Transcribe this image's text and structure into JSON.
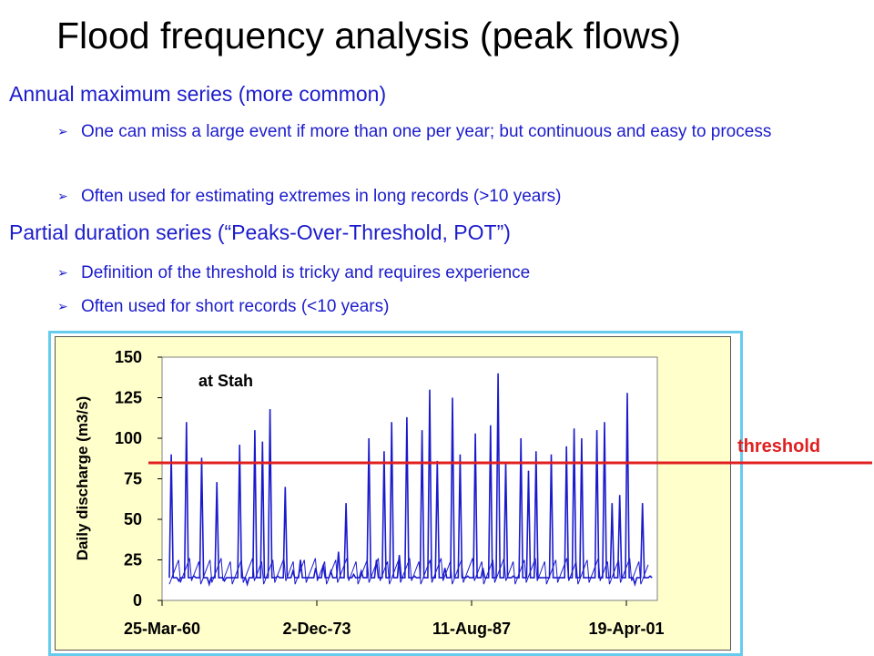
{
  "title": "Flood frequency analysis (peak flows)",
  "section1": {
    "heading": "Annual maximum series (more common)",
    "bullets": [
      "One can miss a large event if more than one per year; but continuous and easy to process",
      "Often used for estimating extremes in long records (>10 years)"
    ]
  },
  "section2": {
    "heading": "Partial duration series (“Peaks-Over-Threshold, POT”)",
    "bullets": [
      "Definition of the threshold is tricky and requires experience",
      "Often used for short records (<10 years)"
    ]
  },
  "threshold_label": "threshold",
  "colors": {
    "text_blue": "#1c1ccc",
    "series": "#1a1acc",
    "threshold": "#e02020",
    "frame": "#66ccee",
    "plot_bg": "#ffffcc"
  },
  "chart_data": {
    "type": "line",
    "annotation": "at Stah",
    "ylabel": "Daily discharge (m3/s)",
    "ylim": [
      0,
      150
    ],
    "yticks": [
      "0",
      "25",
      "50",
      "75",
      "100",
      "125",
      "150"
    ],
    "xticks": [
      "25-Mar-60",
      "2-Dec-73",
      "11-Aug-87",
      "19-Apr-01"
    ],
    "threshold": 85,
    "grid": false,
    "series": [
      {
        "values": [
          90,
          12,
          110,
          15,
          88,
          10,
          73,
          12,
          14,
          96,
          10,
          105,
          98,
          118,
          15,
          70,
          18,
          25,
          14,
          20,
          22,
          18,
          30,
          60,
          16,
          18,
          100,
          25,
          92,
          110,
          28,
          113,
          15,
          105,
          130,
          86,
          20,
          125,
          90,
          15,
          103,
          20,
          108,
          140,
          85,
          15,
          100,
          80,
          92,
          14,
          90,
          14,
          95,
          106,
          100,
          14,
          105,
          110,
          60,
          65,
          128,
          10,
          60,
          15
        ]
      }
    ]
  }
}
